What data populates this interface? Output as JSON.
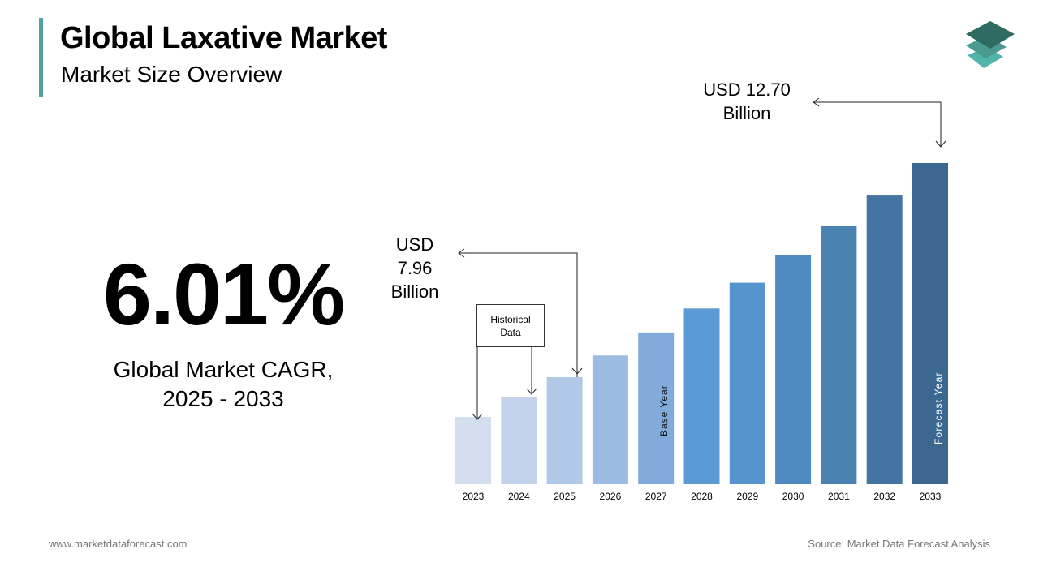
{
  "header": {
    "title": "Global Laxative Market",
    "subtitle": "Market Size Overview"
  },
  "kpi": {
    "value": "6.01%",
    "label_line1": "Global Market CAGR,",
    "label_line2": "2025 - 2033"
  },
  "annotations": {
    "start": {
      "line1": "USD",
      "line2": "7.96",
      "line3": "Billion"
    },
    "end": {
      "line1": "USD 12.70",
      "line2": "Billion"
    },
    "historical_line1": "Historical",
    "historical_line2": "Data",
    "base_year": "Base Year",
    "forecast_year": "Forecast Year"
  },
  "footer": {
    "website": "www.marketdataforecast.com",
    "source": "Source: Market Data Forecast Analysis"
  },
  "colors": {
    "accent": "#4fa3a0",
    "bar_light": "#d3deef",
    "bar_mid": "#5b9bd5",
    "bar_dark": "#3b6790",
    "logo": [
      "#2f6b60",
      "#4a9a8f",
      "#52b5ab"
    ]
  },
  "chart_data": {
    "type": "bar",
    "categories": [
      "2023",
      "2024",
      "2025",
      "2026",
      "2027",
      "2028",
      "2029",
      "2030",
      "2031",
      "2032",
      "2033"
    ],
    "values": [
      7.08,
      7.51,
      7.96,
      8.44,
      8.95,
      9.48,
      10.05,
      10.66,
      11.3,
      11.98,
      12.7
    ],
    "unit": "USD Billion",
    "labeled_values": {
      "2025": 7.96,
      "2033": 12.7
    },
    "grid": false,
    "legend": "none"
  }
}
